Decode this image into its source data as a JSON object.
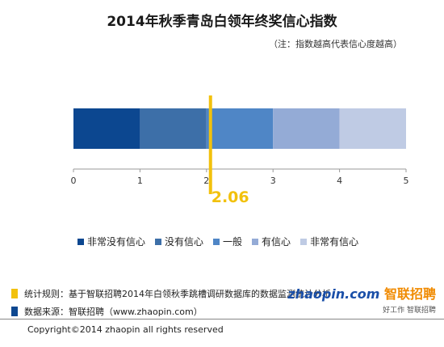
{
  "title": "2014年秋季青岛白领年终奖信心指数",
  "note": "（注：指数越高代表信心度越高）",
  "chart_data": {
    "type": "bar",
    "orientation": "horizontal-stacked",
    "xlim": [
      0,
      5
    ],
    "xticks": [
      "0",
      "1",
      "2",
      "3",
      "4",
      "5"
    ],
    "segments": [
      {
        "name": "非常没有信心",
        "start": 0,
        "end": 1,
        "color": "#0c4790"
      },
      {
        "name": "没有信心",
        "start": 1,
        "end": 2,
        "color": "#3d6fa8"
      },
      {
        "name": "一般",
        "start": 2,
        "end": 3,
        "color": "#4f86c6"
      },
      {
        "name": "有信心",
        "start": 3,
        "end": 4,
        "color": "#94abd6"
      },
      {
        "name": "非常有信心",
        "start": 4,
        "end": 5,
        "color": "#bfcbe4"
      }
    ],
    "marker": {
      "value": 2.06,
      "label": "2.06",
      "color": "#f2c10c"
    }
  },
  "footnotes": [
    {
      "text": "统计规则：基于智联招聘2014年白领秋季跳槽调研数据库的数据监测统计分析",
      "color": "#f2c10c"
    },
    {
      "text": "数据来源：智联招聘（www.zhaopin.com）",
      "color": "#0c4790"
    }
  ],
  "logo": {
    "latin": "zhaopin.com",
    "chinese": "智联招聘",
    "tagline": "好工作 智联招聘"
  },
  "copyright": "Copyright©2014 zhaopin all rights reserved"
}
